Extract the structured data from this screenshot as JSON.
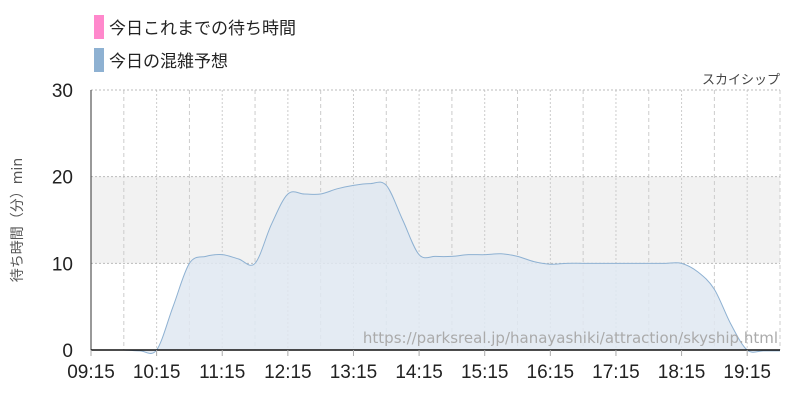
{
  "legend": [
    {
      "label": "今日これまでの待ち時間",
      "color": "#ff88cc"
    },
    {
      "label": "今日の混雑予想",
      "color": "#8eb1d2"
    }
  ],
  "chart_data": {
    "type": "area",
    "title": "スカイシップ",
    "ylabel": "待ち時間（分）min",
    "xlabel": "",
    "watermark": "https://parksreal.jp/hanayashiki/attraction/skyship.html",
    "ylim": [
      0,
      30
    ],
    "yticks": [
      0,
      10,
      20,
      30
    ],
    "xticks": [
      "09:15",
      "10:15",
      "11:15",
      "12:15",
      "13:15",
      "14:15",
      "15:15",
      "16:15",
      "17:15",
      "18:15",
      "19:15"
    ],
    "xrange": [
      "09:15",
      "19:45"
    ],
    "highlight_band": [
      10,
      20
    ],
    "grid": true,
    "series": [
      {
        "name": "今日の混雑予想",
        "color": "#8eb1d2",
        "fill": "#dfe8f1",
        "x": [
          "09:15",
          "09:30",
          "09:45",
          "10:00",
          "10:15",
          "10:30",
          "10:45",
          "11:00",
          "11:15",
          "11:30",
          "11:45",
          "12:00",
          "12:15",
          "12:30",
          "12:45",
          "13:00",
          "13:15",
          "13:30",
          "13:45",
          "14:00",
          "14:15",
          "14:30",
          "14:45",
          "15:00",
          "15:15",
          "15:30",
          "15:45",
          "16:00",
          "16:15",
          "16:30",
          "16:45",
          "17:00",
          "17:15",
          "17:30",
          "17:45",
          "18:00",
          "18:15",
          "18:30",
          "18:45",
          "19:00",
          "19:15",
          "19:30",
          "19:45"
        ],
        "values": [
          0,
          0,
          0,
          -0.1,
          0,
          5,
          10,
          10.8,
          11,
          10.5,
          10,
          14.5,
          18,
          18,
          18,
          18.6,
          19,
          19.2,
          19,
          15,
          11,
          10.8,
          10.8,
          11,
          11,
          11.1,
          10.8,
          10.2,
          9.9,
          10,
          10,
          10,
          10,
          10,
          10,
          10,
          10,
          9,
          7,
          3,
          0,
          -0.1,
          -0.1
        ]
      }
    ]
  }
}
